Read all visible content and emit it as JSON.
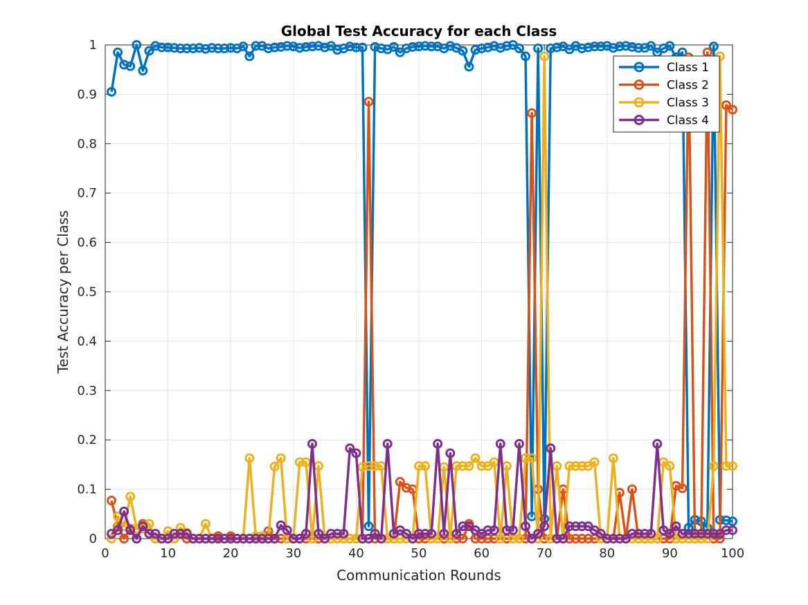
{
  "chart_data": {
    "type": "line",
    "title": "Global Test Accuracy for each Class",
    "xlabel": "Communication Rounds",
    "ylabel": "Test Accuracy per Class",
    "xlim": [
      0,
      100
    ],
    "ylim": [
      0,
      1
    ],
    "xticks": [
      "0",
      "10",
      "20",
      "30",
      "40",
      "50",
      "60",
      "70",
      "80",
      "90",
      "100"
    ],
    "yticks": [
      "0",
      "0.1",
      "0.2",
      "0.3",
      "0.4",
      "0.5",
      "0.6",
      "0.7",
      "0.8",
      "0.9",
      "1"
    ],
    "grid": true,
    "legend_position": "top-right",
    "x": [
      1,
      2,
      3,
      4,
      5,
      6,
      7,
      8,
      9,
      10,
      11,
      12,
      13,
      14,
      15,
      16,
      17,
      18,
      19,
      20,
      21,
      22,
      23,
      24,
      25,
      26,
      27,
      28,
      29,
      30,
      31,
      32,
      33,
      34,
      35,
      36,
      37,
      38,
      39,
      40,
      41,
      42,
      43,
      44,
      45,
      46,
      47,
      48,
      49,
      50,
      51,
      52,
      53,
      54,
      55,
      56,
      57,
      58,
      59,
      60,
      61,
      62,
      63,
      64,
      65,
      66,
      67,
      68,
      69,
      70,
      71,
      72,
      73,
      74,
      75,
      76,
      77,
      78,
      79,
      80,
      81,
      82,
      83,
      84,
      85,
      86,
      87,
      88,
      89,
      90,
      91,
      92,
      93,
      94,
      95,
      96,
      97,
      98,
      99,
      100
    ],
    "series": [
      {
        "name": "Class 1",
        "color": "#0072BD",
        "values": [
          0.905,
          0.985,
          0.96,
          0.957,
          1.0,
          0.948,
          0.988,
          0.998,
          0.995,
          0.995,
          0.994,
          0.993,
          0.993,
          0.993,
          0.994,
          0.992,
          0.994,
          0.993,
          0.993,
          0.994,
          0.993,
          0.997,
          0.977,
          0.998,
          0.998,
          0.993,
          0.995,
          0.996,
          0.998,
          0.997,
          0.994,
          0.996,
          0.997,
          0.998,
          0.995,
          0.998,
          0.99,
          0.993,
          0.997,
          0.995,
          0.995,
          0.025,
          0.996,
          0.993,
          0.991,
          0.996,
          0.985,
          0.993,
          0.996,
          0.997,
          0.998,
          0.997,
          0.997,
          0.993,
          0.998,
          0.994,
          0.988,
          0.956,
          0.99,
          0.993,
          0.995,
          0.998,
          0.994,
          0.998,
          1.0,
          0.993,
          0.977,
          0.045,
          0.993,
          0.04,
          0.993,
          0.995,
          0.997,
          0.991,
          0.998,
          0.993,
          0.995,
          0.997,
          0.997,
          0.998,
          0.994,
          0.997,
          0.998,
          0.996,
          0.994,
          0.994,
          0.998,
          0.985,
          0.993,
          0.998,
          0.975,
          0.985,
          0.022,
          0.038,
          0.035,
          0.022,
          0.997,
          0.038,
          0.037,
          0.035
        ]
      },
      {
        "name": "Class 2",
        "color": "#D95319",
        "values": [
          0.077,
          0.025,
          0.0,
          0.02,
          0.0,
          0.03,
          0.01,
          0.0,
          0.0,
          0.0,
          0.0,
          0.01,
          0.0,
          0.0,
          0.0,
          0.0,
          0.0,
          0.005,
          0.0,
          0.005,
          0.0,
          0.0,
          0.0,
          0.0,
          0.0,
          0.015,
          0.0,
          0.0,
          0.0,
          0.0,
          0.0,
          0.0,
          0.0,
          0.0,
          0.0,
          0.0,
          0.0,
          0.0,
          0.0,
          0.0,
          0.0,
          0.885,
          0.0,
          0.0,
          0.0,
          0.0,
          0.115,
          0.103,
          0.1,
          0.0,
          0.0,
          0.0,
          0.0,
          0.0,
          0.0,
          0.0,
          0.0,
          0.03,
          0.0,
          0.0,
          0.0,
          0.0,
          0.0,
          0.0,
          0.0,
          0.0,
          0.0,
          0.862,
          0.1,
          0.0,
          0.0,
          0.0,
          0.1,
          0.0,
          0.0,
          0.0,
          0.0,
          0.0,
          0.0,
          0.0,
          0.0,
          0.093,
          0.0,
          0.1,
          0.0,
          0.0,
          0.0,
          0.0,
          0.0,
          0.0,
          0.107,
          0.102,
          0.975,
          0.0,
          0.0,
          0.985,
          0.0,
          0.0,
          0.878,
          0.869
        ]
      },
      {
        "name": "Class 3",
        "color": "#EDB120",
        "values": [
          0.0,
          0.045,
          0.025,
          0.085,
          0.02,
          0.02,
          0.03,
          0.0,
          0.0,
          0.015,
          0.0,
          0.022,
          0.012,
          0.0,
          0.0,
          0.03,
          0.0,
          0.0,
          0.0,
          0.0,
          0.0,
          0.0,
          0.163,
          0.005,
          0.005,
          0.0,
          0.146,
          0.163,
          0.0,
          0.0,
          0.155,
          0.155,
          0.0,
          0.147,
          0.0,
          0.0,
          0.0,
          0.0,
          0.0,
          0.0,
          0.145,
          0.147,
          0.147,
          0.147,
          0.0,
          0.0,
          0.0,
          0.0,
          0.0,
          0.147,
          0.147,
          0.0,
          0.0,
          0.145,
          0.0,
          0.147,
          0.147,
          0.147,
          0.163,
          0.147,
          0.147,
          0.155,
          0.0,
          0.147,
          0.0,
          0.0,
          0.163,
          0.163,
          0.0,
          0.977,
          0.0,
          0.147,
          0.0,
          0.147,
          0.147,
          0.147,
          0.147,
          0.155,
          0.0,
          0.0,
          0.163,
          0.0,
          0.0,
          0.0,
          0.0,
          0.0,
          0.0,
          0.0,
          0.155,
          0.147,
          0.0,
          0.0,
          0.0,
          0.0,
          0.0,
          0.0,
          0.147,
          0.977,
          0.147,
          0.147
        ]
      },
      {
        "name": "Class 4",
        "color": "#7E2F8E",
        "values": [
          0.01,
          0.017,
          0.055,
          0.017,
          0.0,
          0.025,
          0.01,
          0.01,
          0.0,
          0.0,
          0.01,
          0.01,
          0.01,
          0.0,
          0.0,
          0.0,
          0.0,
          0.0,
          0.0,
          0.0,
          0.0,
          0.0,
          0.0,
          0.0,
          0.0,
          0.0,
          0.0,
          0.027,
          0.017,
          0.0,
          0.0,
          0.01,
          0.192,
          0.01,
          0.0,
          0.01,
          0.01,
          0.01,
          0.183,
          0.173,
          0.0,
          0.0,
          0.01,
          0.0,
          0.192,
          0.01,
          0.017,
          0.01,
          0.0,
          0.01,
          0.01,
          0.01,
          0.192,
          0.01,
          0.173,
          0.01,
          0.025,
          0.025,
          0.017,
          0.01,
          0.017,
          0.017,
          0.192,
          0.017,
          0.017,
          0.192,
          0.025,
          0.0,
          0.01,
          0.025,
          0.183,
          0.0,
          0.0,
          0.025,
          0.025,
          0.025,
          0.025,
          0.017,
          0.01,
          0.0,
          0.0,
          0.0,
          0.0,
          0.01,
          0.01,
          0.01,
          0.01,
          0.192,
          0.017,
          0.01,
          0.025,
          0.01,
          0.01,
          0.01,
          0.01,
          0.01,
          0.01,
          0.01,
          0.017,
          0.017
        ]
      }
    ]
  }
}
